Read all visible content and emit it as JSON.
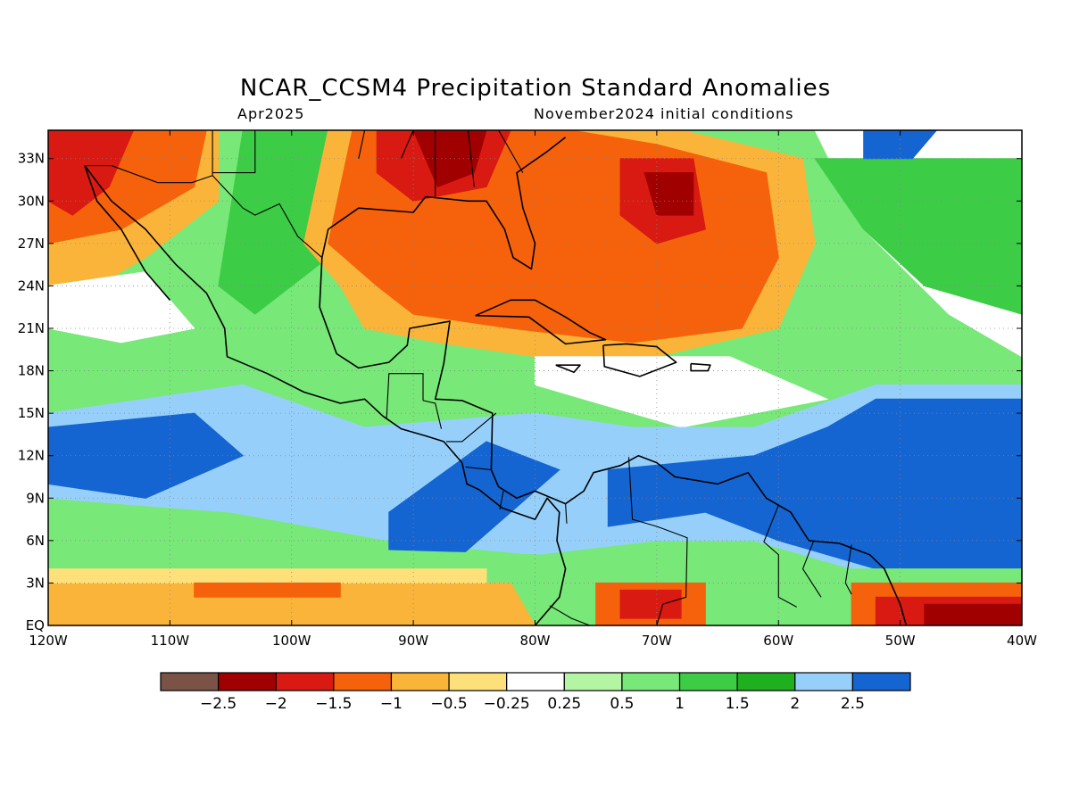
{
  "title": "NCAR_CCSM4 Precipitation Standard Anomalies",
  "valid_month": "Apr2025",
  "init_conditions": "November2024 initial conditions",
  "map": {
    "lon_range": [
      -120,
      -40
    ],
    "lat_range": [
      0,
      35
    ],
    "lat_ticks": [
      {
        "value": 33,
        "label": "33N"
      },
      {
        "value": 30,
        "label": "30N"
      },
      {
        "value": 27,
        "label": "27N"
      },
      {
        "value": 24,
        "label": "24N"
      },
      {
        "value": 21,
        "label": "21N"
      },
      {
        "value": 18,
        "label": "18N"
      },
      {
        "value": 15,
        "label": "15N"
      },
      {
        "value": 12,
        "label": "12N"
      },
      {
        "value": 9,
        "label": "9N"
      },
      {
        "value": 6,
        "label": "6N"
      },
      {
        "value": 3,
        "label": "3N"
      },
      {
        "value": 0,
        "label": "EQ"
      }
    ],
    "lon_ticks": [
      {
        "value": -120,
        "label": "120W"
      },
      {
        "value": -110,
        "label": "110W"
      },
      {
        "value": -100,
        "label": "100W"
      },
      {
        "value": -90,
        "label": "90W"
      },
      {
        "value": -80,
        "label": "80W"
      },
      {
        "value": -70,
        "label": "70W"
      },
      {
        "value": -60,
        "label": "60W"
      },
      {
        "value": -50,
        "label": "50W"
      },
      {
        "value": -40,
        "label": "40W"
      }
    ],
    "grid": true
  },
  "colorbar": {
    "colors": [
      "#7a5246",
      "#a00000",
      "#d81a12",
      "#f5620b",
      "#fbb43a",
      "#fde07a",
      "#ffffff",
      "#b4f5a4",
      "#78e878",
      "#3ccc46",
      "#1eb01e",
      "#96d0fa",
      "#1464d2"
    ],
    "labels": [
      "−2.5",
      "−2",
      "−1.5",
      "−1",
      "−0.5",
      "−0.25",
      "0.25",
      "0.5",
      "1",
      "1.5",
      "2",
      "2.5"
    ]
  },
  "anomaly_regions": [
    {
      "color": "#78e878",
      "points": [
        [
          -120,
          35
        ],
        [
          -40,
          35
        ],
        [
          -40,
          0
        ],
        [
          -120,
          0
        ]
      ]
    },
    {
      "color": "#3ccc46",
      "points": [
        [
          -104,
          35
        ],
        [
          -96,
          35
        ],
        [
          -97,
          26
        ],
        [
          -103,
          22
        ],
        [
          -106,
          24
        ]
      ]
    },
    {
      "color": "#fbb43a",
      "points": [
        [
          -120,
          35
        ],
        [
          -106,
          35
        ],
        [
          -106,
          30
        ],
        [
          -112,
          26
        ],
        [
          -116,
          24
        ],
        [
          -120,
          24
        ]
      ]
    },
    {
      "color": "#f5620b",
      "points": [
        [
          -120,
          35
        ],
        [
          -107,
          35
        ],
        [
          -108,
          31
        ],
        [
          -114,
          28
        ],
        [
          -120,
          27
        ]
      ]
    },
    {
      "color": "#d81a12",
      "points": [
        [
          -120,
          35
        ],
        [
          -113,
          35
        ],
        [
          -115,
          31
        ],
        [
          -118,
          29
        ],
        [
          -120,
          30
        ]
      ]
    },
    {
      "color": "#fbb43a",
      "points": [
        [
          -97,
          35
        ],
        [
          -76,
          35
        ],
        [
          -68,
          35
        ],
        [
          -58,
          33
        ],
        [
          -57,
          27
        ],
        [
          -60,
          21
        ],
        [
          -70,
          19
        ],
        [
          -80,
          19
        ],
        [
          -88,
          20
        ],
        [
          -94,
          21
        ],
        [
          -96,
          24
        ],
        [
          -99,
          27
        ]
      ]
    },
    {
      "color": "#f5620b",
      "points": [
        [
          -95,
          35
        ],
        [
          -77,
          35
        ],
        [
          -70,
          34
        ],
        [
          -61,
          32
        ],
        [
          -60,
          26
        ],
        [
          -63,
          21
        ],
        [
          -72,
          20
        ],
        [
          -82,
          21
        ],
        [
          -90,
          22
        ],
        [
          -93,
          24
        ],
        [
          -97,
          27
        ]
      ]
    },
    {
      "color": "#d81a12",
      "points": [
        [
          -93,
          35
        ],
        [
          -82,
          35
        ],
        [
          -84,
          31
        ],
        [
          -90,
          30
        ],
        [
          -93,
          32
        ]
      ]
    },
    {
      "color": "#d81a12",
      "points": [
        [
          -73,
          33
        ],
        [
          -67,
          33
        ],
        [
          -66,
          28
        ],
        [
          -70,
          27
        ],
        [
          -73,
          29
        ]
      ]
    },
    {
      "color": "#a00000",
      "points": [
        [
          -90,
          35
        ],
        [
          -84,
          35
        ],
        [
          -85,
          32
        ],
        [
          -88,
          31
        ]
      ]
    },
    {
      "color": "#a00000",
      "points": [
        [
          -71,
          32
        ],
        [
          -67,
          32
        ],
        [
          -67,
          29
        ],
        [
          -70,
          29
        ]
      ]
    },
    {
      "color": "#ffffff",
      "points": [
        [
          -120,
          24
        ],
        [
          -112,
          25
        ],
        [
          -108,
          21
        ],
        [
          -114,
          20
        ],
        [
          -120,
          21
        ]
      ]
    },
    {
      "color": "#ffffff",
      "points": [
        [
          -80,
          19
        ],
        [
          -64,
          19
        ],
        [
          -56,
          16
        ],
        [
          -68,
          14
        ],
        [
          -80,
          17
        ]
      ]
    },
    {
      "color": "#ffffff",
      "points": [
        [
          -57,
          35
        ],
        [
          -40,
          35
        ],
        [
          -40,
          19
        ],
        [
          -46,
          22
        ],
        [
          -53,
          28
        ]
      ]
    },
    {
      "color": "#3ccc46",
      "points": [
        [
          -57,
          33
        ],
        [
          -40,
          33
        ],
        [
          -40,
          22
        ],
        [
          -48,
          24
        ],
        [
          -53,
          28
        ]
      ]
    },
    {
      "color": "#96d0fa",
      "points": [
        [
          -120,
          15
        ],
        [
          -104,
          17
        ],
        [
          -94,
          14
        ],
        [
          -80,
          15
        ],
        [
          -72,
          14
        ],
        [
          -62,
          14
        ],
        [
          -52,
          17
        ],
        [
          -40,
          17
        ],
        [
          -40,
          4
        ],
        [
          -54,
          4
        ],
        [
          -62,
          6
        ],
        [
          -70,
          6
        ],
        [
          -80,
          5
        ],
        [
          -92,
          6
        ],
        [
          -105,
          8
        ],
        [
          -120,
          9
        ]
      ]
    },
    {
      "color": "#1464d2",
      "points": [
        [
          -120,
          14
        ],
        [
          -108,
          15
        ],
        [
          -104,
          12
        ],
        [
          -112,
          9
        ],
        [
          -120,
          10
        ]
      ]
    },
    {
      "color": "#1464d2",
      "points": [
        [
          -92,
          8
        ],
        [
          -84,
          13
        ],
        [
          -78,
          11
        ],
        [
          -86,
          5
        ],
        [
          -92,
          5
        ]
      ]
    },
    {
      "color": "#1464d2",
      "points": [
        [
          -74,
          11
        ],
        [
          -62,
          12
        ],
        [
          -56,
          14
        ],
        [
          -52,
          16
        ],
        [
          -40,
          16
        ],
        [
          -40,
          4
        ],
        [
          -52,
          4
        ],
        [
          -60,
          6
        ],
        [
          -66,
          8
        ],
        [
          -74,
          7
        ]
      ]
    },
    {
      "color": "#1464d2",
      "points": [
        [
          -53,
          35
        ],
        [
          -47,
          35
        ],
        [
          -49,
          33
        ],
        [
          -53,
          33
        ]
      ]
    },
    {
      "color": "#78e878",
      "points": [
        [
          -120,
          6
        ],
        [
          -80,
          5
        ],
        [
          -70,
          4
        ],
        [
          -54,
          4
        ],
        [
          -40,
          4
        ],
        [
          -40,
          3
        ],
        [
          -120,
          3
        ]
      ]
    },
    {
      "color": "#fbb43a",
      "points": [
        [
          -120,
          3
        ],
        [
          -82,
          3
        ],
        [
          -80,
          0
        ],
        [
          -120,
          0
        ]
      ]
    },
    {
      "color": "#fde07a",
      "points": [
        [
          -120,
          4
        ],
        [
          -84,
          4
        ],
        [
          -84,
          3
        ],
        [
          -120,
          3
        ]
      ]
    },
    {
      "color": "#f5620b",
      "points": [
        [
          -108,
          3
        ],
        [
          -96,
          3
        ],
        [
          -96,
          2
        ],
        [
          -108,
          2
        ]
      ]
    },
    {
      "color": "#f5620b",
      "points": [
        [
          -75,
          3
        ],
        [
          -66,
          3
        ],
        [
          -66,
          0
        ],
        [
          -75,
          0
        ]
      ]
    },
    {
      "color": "#d81a12",
      "points": [
        [
          -73,
          2.5
        ],
        [
          -68,
          2.5
        ],
        [
          -68,
          0.5
        ],
        [
          -73,
          0.5
        ]
      ]
    },
    {
      "color": "#f5620b",
      "points": [
        [
          -54,
          3
        ],
        [
          -40,
          3
        ],
        [
          -40,
          0
        ],
        [
          -54,
          0
        ]
      ]
    },
    {
      "color": "#d81a12",
      "points": [
        [
          -52,
          2
        ],
        [
          -40,
          2
        ],
        [
          -40,
          0
        ],
        [
          -52,
          0
        ]
      ]
    },
    {
      "color": "#a00000",
      "points": [
        [
          -48,
          1.5
        ],
        [
          -40,
          1.5
        ],
        [
          -40,
          0
        ],
        [
          -48,
          0
        ]
      ]
    }
  ],
  "coastlines": [
    [
      [
        -117,
        32.5
      ],
      [
        -114.8,
        30
      ],
      [
        -112,
        28
      ],
      [
        -109.5,
        25.5
      ],
      [
        -107,
        23.5
      ],
      [
        -105.5,
        21
      ],
      [
        -105.3,
        19
      ],
      [
        -102,
        17.8
      ],
      [
        -99,
        16.5
      ],
      [
        -96,
        15.7
      ],
      [
        -94,
        16
      ],
      [
        -92.5,
        14.8
      ],
      [
        -91,
        13.9
      ],
      [
        -89,
        13.4
      ],
      [
        -87.5,
        13
      ],
      [
        -86,
        11.5
      ],
      [
        -85.6,
        10
      ],
      [
        -84.6,
        9.6
      ],
      [
        -82.7,
        8.3
      ],
      [
        -80,
        7.5
      ],
      [
        -79,
        9
      ],
      [
        -78,
        8
      ],
      [
        -78.2,
        6
      ],
      [
        -77.5,
        4
      ],
      [
        -78,
        2
      ],
      [
        -80,
        0
      ]
    ],
    [
      [
        -117,
        32.5
      ],
      [
        -116,
        30
      ],
      [
        -114,
        28
      ],
      [
        -112,
        25
      ],
      [
        -110,
        23
      ]
    ],
    [
      [
        -97.5,
        26
      ],
      [
        -97,
        28
      ],
      [
        -94.5,
        29.5
      ],
      [
        -90,
        29.2
      ],
      [
        -89,
        30.3
      ],
      [
        -85.5,
        30
      ],
      [
        -84,
        30
      ],
      [
        -82.5,
        28
      ],
      [
        -81.8,
        26
      ],
      [
        -80.3,
        25.2
      ],
      [
        -80,
        27
      ],
      [
        -81,
        29.5
      ],
      [
        -81.5,
        32
      ],
      [
        -79,
        33.5
      ],
      [
        -77.5,
        34.5
      ]
    ],
    [
      [
        -97.5,
        26
      ],
      [
        -97.7,
        22.5
      ],
      [
        -96.3,
        19.2
      ],
      [
        -94.5,
        18.2
      ],
      [
        -92,
        18.6
      ],
      [
        -90.5,
        19.8
      ],
      [
        -90.3,
        21
      ],
      [
        -87,
        21.5
      ],
      [
        -87.5,
        18.5
      ],
      [
        -88.2,
        16
      ],
      [
        -86,
        15.9
      ],
      [
        -83.5,
        15
      ],
      [
        -83.6,
        11
      ],
      [
        -83,
        9.8
      ],
      [
        -81.5,
        9
      ],
      [
        -80,
        9.5
      ],
      [
        -77.5,
        8.6
      ],
      [
        -76,
        9.5
      ],
      [
        -75.2,
        10.8
      ],
      [
        -73,
        11.3
      ],
      [
        -71.5,
        12
      ],
      [
        -70,
        11.5
      ],
      [
        -68.5,
        10.5
      ],
      [
        -65,
        10
      ],
      [
        -62.5,
        10.8
      ],
      [
        -61,
        9
      ],
      [
        -59,
        8
      ],
      [
        -57.5,
        6
      ],
      [
        -55,
        5.8
      ],
      [
        -52.5,
        5
      ],
      [
        -51.3,
        4
      ],
      [
        -50,
        1.5
      ],
      [
        -49.5,
        0
      ]
    ],
    [
      [
        -84.9,
        21.9
      ],
      [
        -82,
        23
      ],
      [
        -80,
        23
      ],
      [
        -77.5,
        21.8
      ],
      [
        -75.5,
        20.7
      ],
      [
        -74.2,
        20.2
      ],
      [
        -77.5,
        19.9
      ],
      [
        -80.5,
        21.8
      ],
      [
        -84.9,
        21.9
      ]
    ],
    [
      [
        -74.4,
        19.8
      ],
      [
        -72.5,
        19.9
      ],
      [
        -70,
        19.7
      ],
      [
        -68.4,
        18.6
      ],
      [
        -71.4,
        17.6
      ],
      [
        -74.3,
        18.3
      ],
      [
        -74.4,
        19.8
      ]
    ],
    [
      [
        -78.3,
        18.4
      ],
      [
        -76.3,
        18.4
      ],
      [
        -76.8,
        17.9
      ],
      [
        -78.3,
        18.4
      ]
    ],
    [
      [
        -67.2,
        18.5
      ],
      [
        -65.6,
        18.4
      ],
      [
        -65.8,
        18
      ],
      [
        -67.2,
        18
      ],
      [
        -67.2,
        18.5
      ]
    ]
  ],
  "borders": [
    [
      [
        -117,
        32.5
      ],
      [
        -114.8,
        32.5
      ],
      [
        -111,
        31.3
      ],
      [
        -108.2,
        31.3
      ],
      [
        -106.5,
        31.8
      ],
      [
        -104,
        29.5
      ],
      [
        -103,
        29
      ],
      [
        -101,
        29.8
      ],
      [
        -99.5,
        27.5
      ],
      [
        -97.5,
        26
      ]
    ],
    [
      [
        -92.2,
        14.6
      ],
      [
        -92,
        17.8
      ],
      [
        -89.2,
        17.8
      ],
      [
        -89.2,
        15.9
      ]
    ],
    [
      [
        -89.2,
        15.9
      ],
      [
        -88.2,
        15.7
      ],
      [
        -87.7,
        13.9
      ]
    ],
    [
      [
        -83.2,
        15
      ],
      [
        -86,
        13
      ],
      [
        -87.3,
        13
      ]
    ],
    [
      [
        -83.6,
        11
      ],
      [
        -85.7,
        11.2
      ]
    ],
    [
      [
        -82.6,
        9.5
      ],
      [
        -82.9,
        8.2
      ]
    ],
    [
      [
        -77.5,
        8.6
      ],
      [
        -77.4,
        7.2
      ]
    ],
    [
      [
        -72.3,
        11.9
      ],
      [
        -72,
        7.5
      ],
      [
        -70,
        7
      ],
      [
        -67.5,
        6.2
      ],
      [
        -67.6,
        2
      ],
      [
        -69.5,
        1.5
      ],
      [
        -70,
        0
      ]
    ],
    [
      [
        -78.8,
        1.4
      ],
      [
        -77,
        0.5
      ],
      [
        -75.5,
        0
      ]
    ],
    [
      [
        -60,
        8.5
      ],
      [
        -61.2,
        5.9
      ],
      [
        -60,
        5
      ],
      [
        -60,
        2
      ],
      [
        -58.5,
        1.3
      ]
    ],
    [
      [
        -57.1,
        6
      ],
      [
        -58,
        4
      ],
      [
        -56.5,
        2
      ]
    ],
    [
      [
        -54,
        5.7
      ],
      [
        -54.5,
        3
      ],
      [
        -54,
        2.2
      ]
    ],
    [
      [
        -106.5,
        31.8
      ],
      [
        -106.5,
        35
      ]
    ],
    [
      [
        -103,
        35
      ],
      [
        -103,
        32
      ],
      [
        -106.5,
        32
      ]
    ],
    [
      [
        -94.5,
        33
      ],
      [
        -94,
        35
      ]
    ],
    [
      [
        -91,
        33
      ],
      [
        -90,
        35
      ]
    ],
    [
      [
        -88.2,
        30.3
      ],
      [
        -88.2,
        35
      ]
    ],
    [
      [
        -85,
        31
      ],
      [
        -85.5,
        35
      ]
    ],
    [
      [
        -81,
        32
      ],
      [
        -83,
        35
      ]
    ]
  ]
}
